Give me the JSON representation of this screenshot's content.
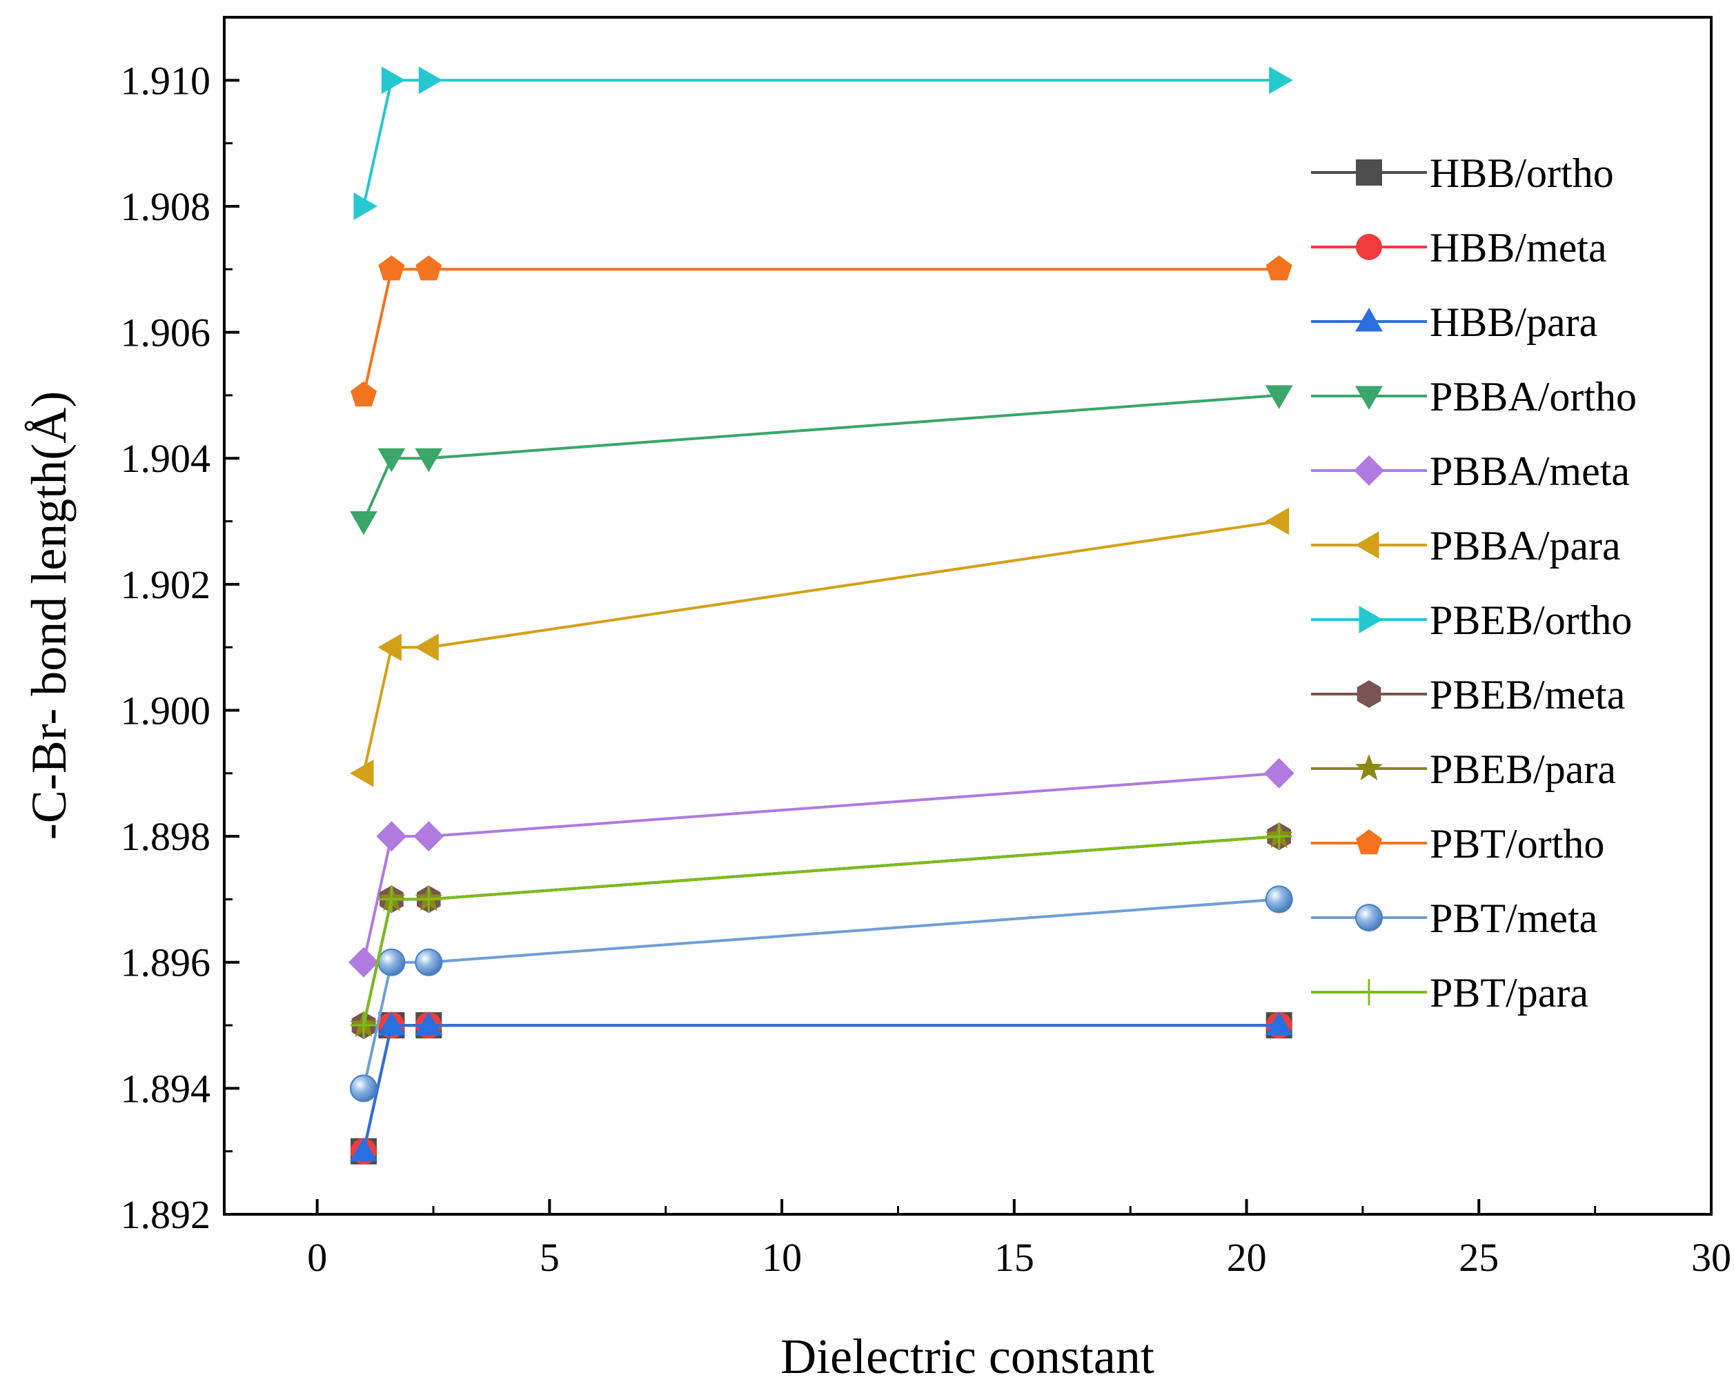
{
  "chart_data": {
    "type": "line",
    "title": "",
    "xlabel": "Dielectric constant",
    "ylabel": "-C-Br- bond length(Å)",
    "xlim": [
      -2,
      30
    ],
    "ylim": [
      1.892,
      1.911
    ],
    "xticks": [
      0,
      5,
      10,
      15,
      20,
      25,
      30
    ],
    "xtick_labels": [
      "0",
      "5",
      "10",
      "15",
      "20",
      "25",
      "30"
    ],
    "yticks": [
      1.892,
      1.894,
      1.896,
      1.898,
      1.9,
      1.902,
      1.904,
      1.906,
      1.908,
      1.91
    ],
    "ytick_labels": [
      "1.892",
      "1.894",
      "1.896",
      "1.898",
      "1.900",
      "1.902",
      "1.904",
      "1.906",
      "1.908",
      "1.910"
    ],
    "grid": false,
    "legend_position": "right",
    "x": [
      1,
      1.6,
      2.4,
      20.7
    ],
    "series": [
      {
        "name": "HBB/ortho",
        "marker": "square",
        "color": "#4d4d4d",
        "values": [
          1.893,
          1.895,
          1.895,
          1.895
        ]
      },
      {
        "name": "HBB/meta",
        "marker": "circle",
        "color": "#f03c3c",
        "values": [
          1.893,
          1.895,
          1.895,
          1.895
        ]
      },
      {
        "name": "HBB/para",
        "marker": "triangle-up",
        "color": "#2a6fe0",
        "values": [
          1.893,
          1.895,
          1.895,
          1.895
        ]
      },
      {
        "name": "PBBA/ortho",
        "marker": "triangle-down",
        "color": "#3aa66a",
        "values": [
          1.903,
          1.904,
          1.904,
          1.905
        ]
      },
      {
        "name": "PBBA/meta",
        "marker": "diamond",
        "color": "#b07ae0",
        "values": [
          1.896,
          1.898,
          1.898,
          1.899
        ]
      },
      {
        "name": "PBBA/para",
        "marker": "triangle-left",
        "color": "#d4a017",
        "values": [
          1.899,
          1.901,
          1.901,
          1.903
        ]
      },
      {
        "name": "PBEB/ortho",
        "marker": "triangle-right",
        "color": "#25c8cf",
        "values": [
          1.908,
          1.91,
          1.91,
          1.91
        ]
      },
      {
        "name": "PBEB/meta",
        "marker": "hexagon",
        "color": "#7a5450",
        "values": [
          1.895,
          1.897,
          1.897,
          1.898
        ]
      },
      {
        "name": "PBEB/para",
        "marker": "star",
        "color": "#8a8a14",
        "values": [
          1.895,
          1.897,
          1.897,
          1.898
        ]
      },
      {
        "name": "PBT/ortho",
        "marker": "pentagon",
        "color": "#f5731e",
        "values": [
          1.905,
          1.907,
          1.907,
          1.907
        ]
      },
      {
        "name": "PBT/meta",
        "marker": "sphere",
        "color": "#6e9fd6",
        "values": [
          1.894,
          1.896,
          1.896,
          1.897
        ]
      },
      {
        "name": "PBT/para",
        "marker": "plus",
        "color": "#7dbb1c",
        "values": [
          1.895,
          1.897,
          1.897,
          1.898
        ]
      }
    ]
  }
}
